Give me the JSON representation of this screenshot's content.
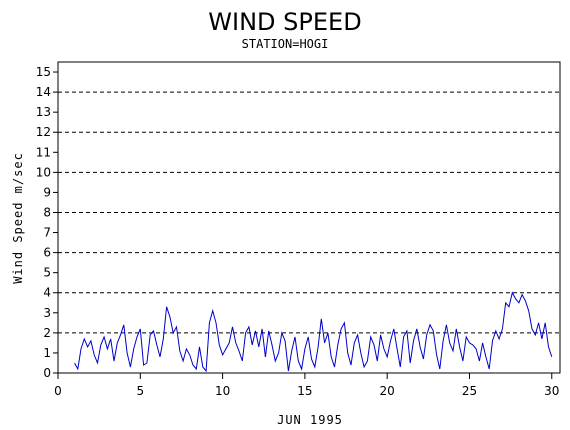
{
  "chart_data": {
    "type": "line",
    "title": "WIND SPEED",
    "subtitle": "STATION=HOGI",
    "xlabel": "JUN 1995",
    "ylabel": "Wind Speed m/sec",
    "xlim": [
      0,
      30.5
    ],
    "ylim": [
      0,
      15.5
    ],
    "xticks": [
      0,
      5,
      10,
      15,
      20,
      25,
      30
    ],
    "yticks": [
      0,
      1,
      2,
      3,
      4,
      5,
      6,
      7,
      8,
      9,
      10,
      11,
      12,
      13,
      14,
      15
    ],
    "grid_y_dashed": [
      2,
      4,
      6,
      8,
      10,
      12,
      14
    ],
    "series": [
      {
        "color": "#0000cc",
        "x": [
          1.0,
          1.2,
          1.4,
          1.6,
          1.8,
          2.0,
          2.2,
          2.4,
          2.6,
          2.8,
          3.0,
          3.2,
          3.4,
          3.6,
          3.8,
          4.0,
          4.2,
          4.4,
          4.6,
          4.8,
          5.0,
          5.2,
          5.4,
          5.6,
          5.8,
          6.0,
          6.2,
          6.4,
          6.6,
          6.8,
          7.0,
          7.2,
          7.4,
          7.6,
          7.8,
          8.0,
          8.2,
          8.4,
          8.6,
          8.8,
          9.0,
          9.2,
          9.4,
          9.6,
          9.8,
          10.0,
          10.2,
          10.4,
          10.6,
          10.8,
          11.0,
          11.2,
          11.4,
          11.6,
          11.8,
          12.0,
          12.2,
          12.4,
          12.6,
          12.8,
          13.0,
          13.2,
          13.4,
          13.6,
          13.8,
          14.0,
          14.2,
          14.4,
          14.6,
          14.8,
          15.0,
          15.2,
          15.4,
          15.6,
          15.8,
          16.0,
          16.2,
          16.4,
          16.6,
          16.8,
          17.0,
          17.2,
          17.4,
          17.6,
          17.8,
          18.0,
          18.2,
          18.4,
          18.6,
          18.8,
          19.0,
          19.2,
          19.4,
          19.6,
          19.8,
          20.0,
          20.2,
          20.4,
          20.6,
          20.8,
          21.0,
          21.2,
          21.4,
          21.6,
          21.8,
          22.0,
          22.2,
          22.4,
          22.6,
          22.8,
          23.0,
          23.2,
          23.4,
          23.6,
          23.8,
          24.0,
          24.2,
          24.4,
          24.6,
          24.8,
          25.0,
          25.2,
          25.4,
          25.6,
          25.8,
          26.0,
          26.2,
          26.4,
          26.6,
          26.8,
          27.0,
          27.2,
          27.4,
          27.6,
          27.8,
          28.0,
          28.2,
          28.4,
          28.6,
          28.8,
          29.0,
          29.2,
          29.4,
          29.6,
          29.8,
          30.0
        ],
        "y": [
          0.5,
          0.2,
          1.2,
          1.7,
          1.3,
          1.6,
          0.9,
          0.5,
          1.4,
          1.8,
          1.2,
          1.7,
          0.6,
          1.5,
          1.9,
          2.4,
          1.0,
          0.3,
          1.2,
          1.8,
          2.2,
          0.4,
          0.5,
          1.9,
          2.1,
          1.4,
          0.8,
          1.7,
          3.3,
          2.8,
          2.0,
          2.3,
          1.1,
          0.6,
          1.2,
          0.9,
          0.4,
          0.2,
          1.3,
          0.3,
          0.1,
          2.5,
          3.1,
          2.5,
          1.4,
          0.9,
          1.2,
          1.5,
          2.3,
          1.5,
          1.1,
          0.6,
          2.0,
          2.3,
          1.4,
          2.1,
          1.3,
          2.2,
          0.8,
          2.1,
          1.4,
          0.6,
          1.0,
          2.0,
          1.6,
          0.1,
          1.1,
          1.8,
          0.6,
          0.2,
          1.2,
          1.8,
          0.7,
          0.3,
          1.3,
          2.7,
          1.5,
          2.0,
          0.8,
          0.3,
          1.4,
          2.2,
          2.5,
          1.0,
          0.4,
          1.5,
          1.9,
          1.0,
          0.3,
          0.6,
          1.8,
          1.4,
          0.6,
          1.9,
          1.2,
          0.8,
          1.6,
          2.2,
          1.2,
          0.3,
          1.8,
          2.1,
          0.5,
          1.6,
          2.2,
          1.3,
          0.7,
          1.9,
          2.4,
          2.1,
          0.9,
          0.2,
          1.6,
          2.4,
          1.5,
          1.1,
          2.2,
          1.3,
          0.6,
          1.8,
          1.5,
          1.4,
          1.2,
          0.6,
          1.5,
          0.8,
          0.2,
          1.6,
          2.1,
          1.7,
          2.2,
          3.5,
          3.3,
          4.0,
          3.7,
          3.5,
          3.9,
          3.6,
          3.1,
          2.2,
          1.9,
          2.5,
          1.7,
          2.5,
          1.3,
          0.8
        ]
      }
    ]
  }
}
